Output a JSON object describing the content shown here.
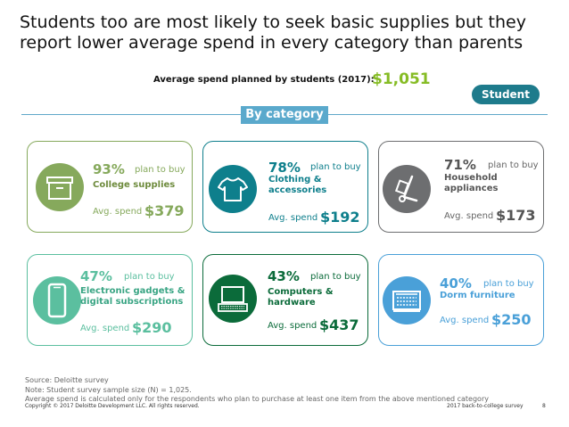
{
  "title": "Students too are most likely to seek basic supplies but they report lower average spend in every category than parents",
  "avg_label": "Average spend planned by students (2017):",
  "avg_amount": "$1,051",
  "badge": "Student",
  "section_label": "By category",
  "plan_to_buy": "plan to buy",
  "avg_spend_label": "Avg. spend",
  "cards": [
    {
      "pct": "93%",
      "category": "College supplies",
      "spend": "$379",
      "color": "#86a95c",
      "icon": "box-icon"
    },
    {
      "pct": "78%",
      "category": "Clothing & accessories",
      "spend": "$192",
      "color": "#0e7f8c",
      "icon": "shirt-icon"
    },
    {
      "pct": "71%",
      "category": "Household appliances",
      "spend": "$173",
      "color": "#6d6e70",
      "icon": "hand-truck-icon"
    },
    {
      "pct": "47%",
      "category": "Electronic gadgets & digital subscriptions",
      "spend": "$290",
      "color": "#5bbf9f",
      "icon": "smartphone-icon"
    },
    {
      "pct": "43%",
      "category": "Computers & hardware",
      "spend": "$437",
      "color": "#0b6b3a",
      "icon": "laptop-icon"
    },
    {
      "pct": "40%",
      "category": "Dorm furniture",
      "spend": "$250",
      "color": "#4aa0d8",
      "icon": "building-icon"
    }
  ],
  "source": "Source: Deloitte survey",
  "note1": "Note:  Student survey sample size (N) = 1,025.",
  "note2": "Average spend is calculated only for the respondents who plan to purchase at least one item from the above mentioned category",
  "copyright": "Copyright © 2017 Deloitte Development LLC. All rights reserved.",
  "report": "2017 back-to-college survey",
  "page_number": "8"
}
